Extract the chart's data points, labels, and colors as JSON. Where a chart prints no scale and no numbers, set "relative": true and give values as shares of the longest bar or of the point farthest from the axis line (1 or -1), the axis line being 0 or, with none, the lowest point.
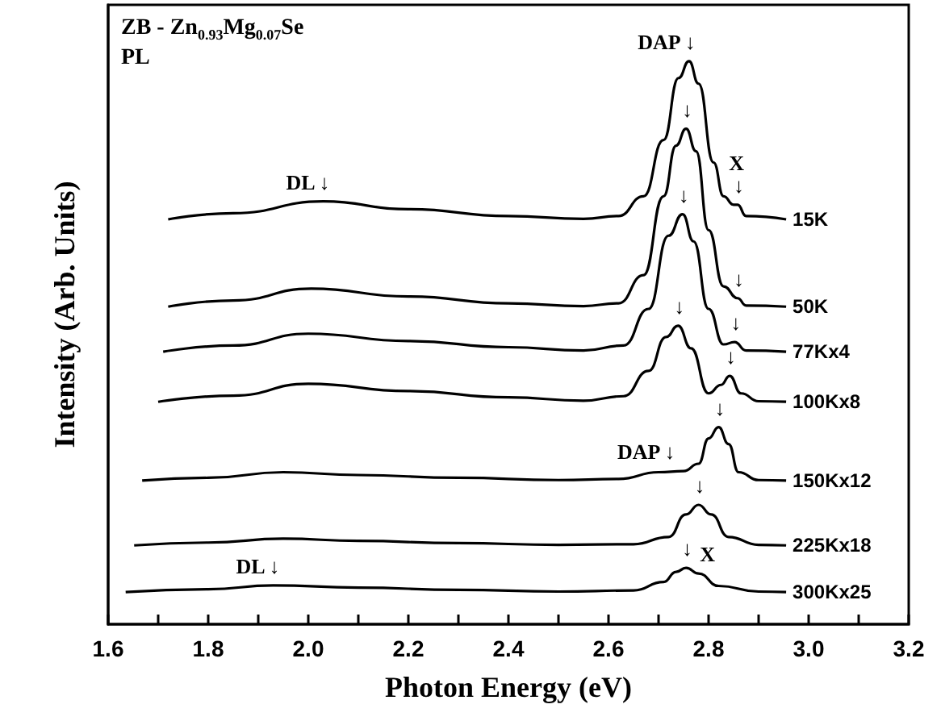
{
  "chart_data": {
    "type": "line",
    "title": "ZB - Zn$_{0.93}$Mg$_{0.07}$Se",
    "subtitle": "PL",
    "xlabel": "Photon Energy (eV)",
    "ylabel": "Intensity (Arb. Units)",
    "relative": true,
    "tick_labels": "x",
    "grid": false,
    "legend": false,
    "marker": "none",
    "line_style": "solid",
    "xlim": [
      1.6,
      3.2
    ],
    "xticks": [
      1.6,
      {
        "value": 1.7,
        "label": null
      },
      1.8,
      {
        "value": 1.9,
        "label": null
      },
      {
        "value": 2,
        "label": "2.0"
      },
      {
        "value": 2.1,
        "label": null
      },
      2.2,
      {
        "value": 2.3,
        "label": null
      },
      2.4,
      {
        "value": 2.5,
        "label": null
      },
      2.6,
      {
        "value": 2.7,
        "label": null
      },
      2.8,
      {
        "value": 2.9,
        "label": null
      },
      {
        "value": 3,
        "label": "3.0"
      },
      {
        "value": 3.1,
        "label": null
      },
      3.2
    ],
    "series": [
      {
        "name": "15K",
        "color": "#000000",
        "x": [
          1.72,
          1.85,
          2.03,
          2.2,
          2.4,
          2.55,
          2.62,
          2.67,
          2.71,
          2.74,
          2.761,
          2.78,
          2.81,
          2.83,
          2.85,
          2.858,
          2.875,
          2.955
        ],
        "values": [
          0.719,
          0.73,
          0.751,
          0.737,
          0.725,
          0.72,
          0.725,
          0.76,
          0.86,
          0.97,
          1.0,
          0.96,
          0.82,
          0.76,
          0.745,
          0.745,
          0.725,
          0.719
        ]
      },
      {
        "name": "50K",
        "color": "#000000",
        "x": [
          1.72,
          1.85,
          2.006,
          2.2,
          2.4,
          2.55,
          2.62,
          2.67,
          2.71,
          2.735,
          2.755,
          2.775,
          2.8,
          2.83,
          2.858,
          2.875,
          2.955
        ],
        "values": [
          0.564,
          0.575,
          0.596,
          0.582,
          0.57,
          0.565,
          0.57,
          0.62,
          0.76,
          0.85,
          0.88,
          0.84,
          0.7,
          0.6,
          0.579,
          0.566,
          0.564
        ]
      },
      {
        "name": "77Kx4",
        "color": "#000000",
        "x": [
          1.71,
          1.85,
          2.0,
          2.2,
          2.4,
          2.55,
          2.63,
          2.68,
          2.72,
          2.748,
          2.77,
          2.8,
          2.83,
          2.852,
          2.875,
          2.955
        ],
        "values": [
          0.484,
          0.495,
          0.516,
          0.503,
          0.492,
          0.486,
          0.495,
          0.56,
          0.69,
          0.728,
          0.68,
          0.56,
          0.497,
          0.501,
          0.486,
          0.484
        ]
      },
      {
        "name": "100Kx8",
        "color": "#000000",
        "x": [
          1.7,
          1.85,
          2.0,
          2.2,
          2.4,
          2.55,
          2.63,
          2.68,
          2.715,
          2.739,
          2.765,
          2.8,
          2.825,
          2.842,
          2.865,
          2.9,
          2.955
        ],
        "values": [
          0.395,
          0.406,
          0.427,
          0.414,
          0.403,
          0.397,
          0.405,
          0.45,
          0.51,
          0.53,
          0.49,
          0.41,
          0.425,
          0.441,
          0.41,
          0.396,
          0.395
        ]
      },
      {
        "name": "150Kx12",
        "color": "#000000",
        "x": [
          1.668,
          1.8,
          1.95,
          2.1,
          2.3,
          2.5,
          2.62,
          2.7,
          2.75,
          2.78,
          2.8,
          2.82,
          2.84,
          2.86,
          2.9,
          2.955
        ],
        "values": [
          0.255,
          0.26,
          0.27,
          0.265,
          0.26,
          0.256,
          0.258,
          0.27,
          0.272,
          0.285,
          0.33,
          0.35,
          0.32,
          0.27,
          0.256,
          0.255
        ]
      },
      {
        "name": "225Kx18",
        "color": "#000000",
        "x": [
          1.652,
          1.8,
          1.95,
          2.1,
          2.3,
          2.5,
          2.65,
          2.72,
          2.755,
          2.78,
          2.805,
          2.84,
          2.9,
          2.955
        ],
        "values": [
          0.14,
          0.145,
          0.152,
          0.148,
          0.144,
          0.141,
          0.142,
          0.155,
          0.195,
          0.212,
          0.195,
          0.155,
          0.141,
          0.14
        ]
      },
      {
        "name": "300Kx25",
        "color": "#000000",
        "x": [
          1.635,
          1.8,
          1.93,
          2.1,
          2.3,
          2.5,
          2.65,
          2.71,
          2.735,
          2.755,
          2.78,
          2.82,
          2.9,
          2.955
        ],
        "values": [
          0.057,
          0.062,
          0.069,
          0.065,
          0.061,
          0.058,
          0.06,
          0.075,
          0.093,
          0.1,
          0.09,
          0.068,
          0.058,
          0.057
        ]
      }
    ],
    "annotations": [
      {
        "text": "DAP ↓",
        "x": 2.761,
        "y": 1.0
      },
      {
        "text": "↓",
        "x": 2.755,
        "y": 0.88
      },
      {
        "text": "↓",
        "x": 2.748,
        "y": 0.728
      },
      {
        "text": "↓",
        "x": 2.739,
        "y": 0.53
      },
      {
        "text": "X\n↓",
        "x": 2.858,
        "y": 0.745
      },
      {
        "text": "↓",
        "x": 2.858,
        "y": 0.579
      },
      {
        "text": "↓",
        "x": 2.852,
        "y": 0.501
      },
      {
        "text": "↓",
        "x": 2.842,
        "y": 0.441
      },
      {
        "text": "DAP ↓",
        "x": 2.72,
        "y": 0.272
      },
      {
        "text": "↓",
        "x": 2.82,
        "y": 0.35
      },
      {
        "text": "↓",
        "x": 2.78,
        "y": 0.212
      },
      {
        "text": "↓",
        "x": 2.755,
        "y": 0.1
      },
      {
        "text": "X",
        "x": 2.8,
        "y": 0.09
      },
      {
        "text": "DL ↓",
        "x": 2.03,
        "y": 0.751
      },
      {
        "text": "DL ↓",
        "x": 1.93,
        "y": 0.069
      }
    ]
  }
}
